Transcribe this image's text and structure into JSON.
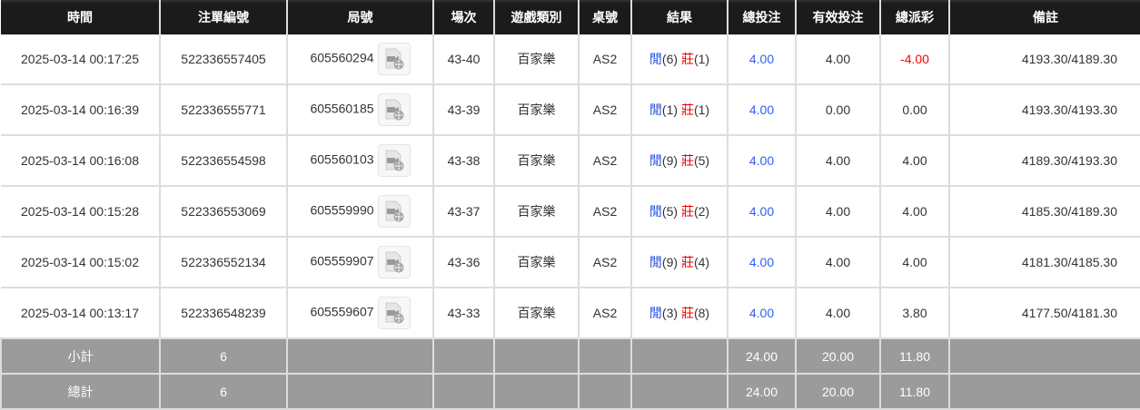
{
  "headers": [
    "時間",
    "注單編號",
    "局號",
    "場次",
    "遊戲類別",
    "桌號",
    "結果",
    "總投注",
    "有效投注",
    "總派彩",
    "備註"
  ],
  "rows": [
    {
      "time": "2025-03-14 00:17:25",
      "bet_id": "522336557405",
      "round": "605560294",
      "session": "43-40",
      "game": "百家樂",
      "table": "AS2",
      "player_label": "閒",
      "player": "(6)",
      "banker_label": "莊",
      "banker": "(1)",
      "total_bet": "4.00",
      "valid_bet": "4.00",
      "payout": "-4.00",
      "payout_negative": true,
      "remark": "4193.30/4189.30"
    },
    {
      "time": "2025-03-14 00:16:39",
      "bet_id": "522336555771",
      "round": "605560185",
      "session": "43-39",
      "game": "百家樂",
      "table": "AS2",
      "player_label": "閒",
      "player": "(1)",
      "banker_label": "莊",
      "banker": "(1)",
      "total_bet": "4.00",
      "valid_bet": "0.00",
      "payout": "0.00",
      "payout_negative": false,
      "remark": "4193.30/4193.30"
    },
    {
      "time": "2025-03-14 00:16:08",
      "bet_id": "522336554598",
      "round": "605560103",
      "session": "43-38",
      "game": "百家樂",
      "table": "AS2",
      "player_label": "閒",
      "player": "(9)",
      "banker_label": "莊",
      "banker": "(5)",
      "total_bet": "4.00",
      "valid_bet": "4.00",
      "payout": "4.00",
      "payout_negative": false,
      "remark": "4189.30/4193.30"
    },
    {
      "time": "2025-03-14 00:15:28",
      "bet_id": "522336553069",
      "round": "605559990",
      "session": "43-37",
      "game": "百家樂",
      "table": "AS2",
      "player_label": "閒",
      "player": "(5)",
      "banker_label": "莊",
      "banker": "(2)",
      "total_bet": "4.00",
      "valid_bet": "4.00",
      "payout": "4.00",
      "payout_negative": false,
      "remark": "4185.30/4189.30"
    },
    {
      "time": "2025-03-14 00:15:02",
      "bet_id": "522336552134",
      "round": "605559907",
      "session": "43-36",
      "game": "百家樂",
      "table": "AS2",
      "player_label": "閒",
      "player": "(9)",
      "banker_label": "莊",
      "banker": "(4)",
      "total_bet": "4.00",
      "valid_bet": "4.00",
      "payout": "4.00",
      "payout_negative": false,
      "remark": "4181.30/4185.30"
    },
    {
      "time": "2025-03-14 00:13:17",
      "bet_id": "522336548239",
      "round": "605559607",
      "session": "43-33",
      "game": "百家樂",
      "table": "AS2",
      "player_label": "閒",
      "player": "(3)",
      "banker_label": "莊",
      "banker": "(8)",
      "total_bet": "4.00",
      "valid_bet": "4.00",
      "payout": "3.80",
      "payout_negative": false,
      "remark": "4177.50/4181.30"
    }
  ],
  "footer": [
    {
      "label": "小計",
      "count": "6",
      "total_bet": "24.00",
      "valid_bet": "20.00",
      "payout": "11.80"
    },
    {
      "label": "總計",
      "count": "6",
      "total_bet": "24.00",
      "valid_bet": "20.00",
      "payout": "11.80"
    }
  ],
  "icons": {
    "video": "video-replay-icon"
  },
  "colors": {
    "header_bg": "#1b1b1b",
    "footer_bg": "#9b9b9b",
    "player": "#1f4fe0",
    "banker": "#e00000",
    "negative": "#ff0000",
    "total_bet": "#2f5df5"
  }
}
